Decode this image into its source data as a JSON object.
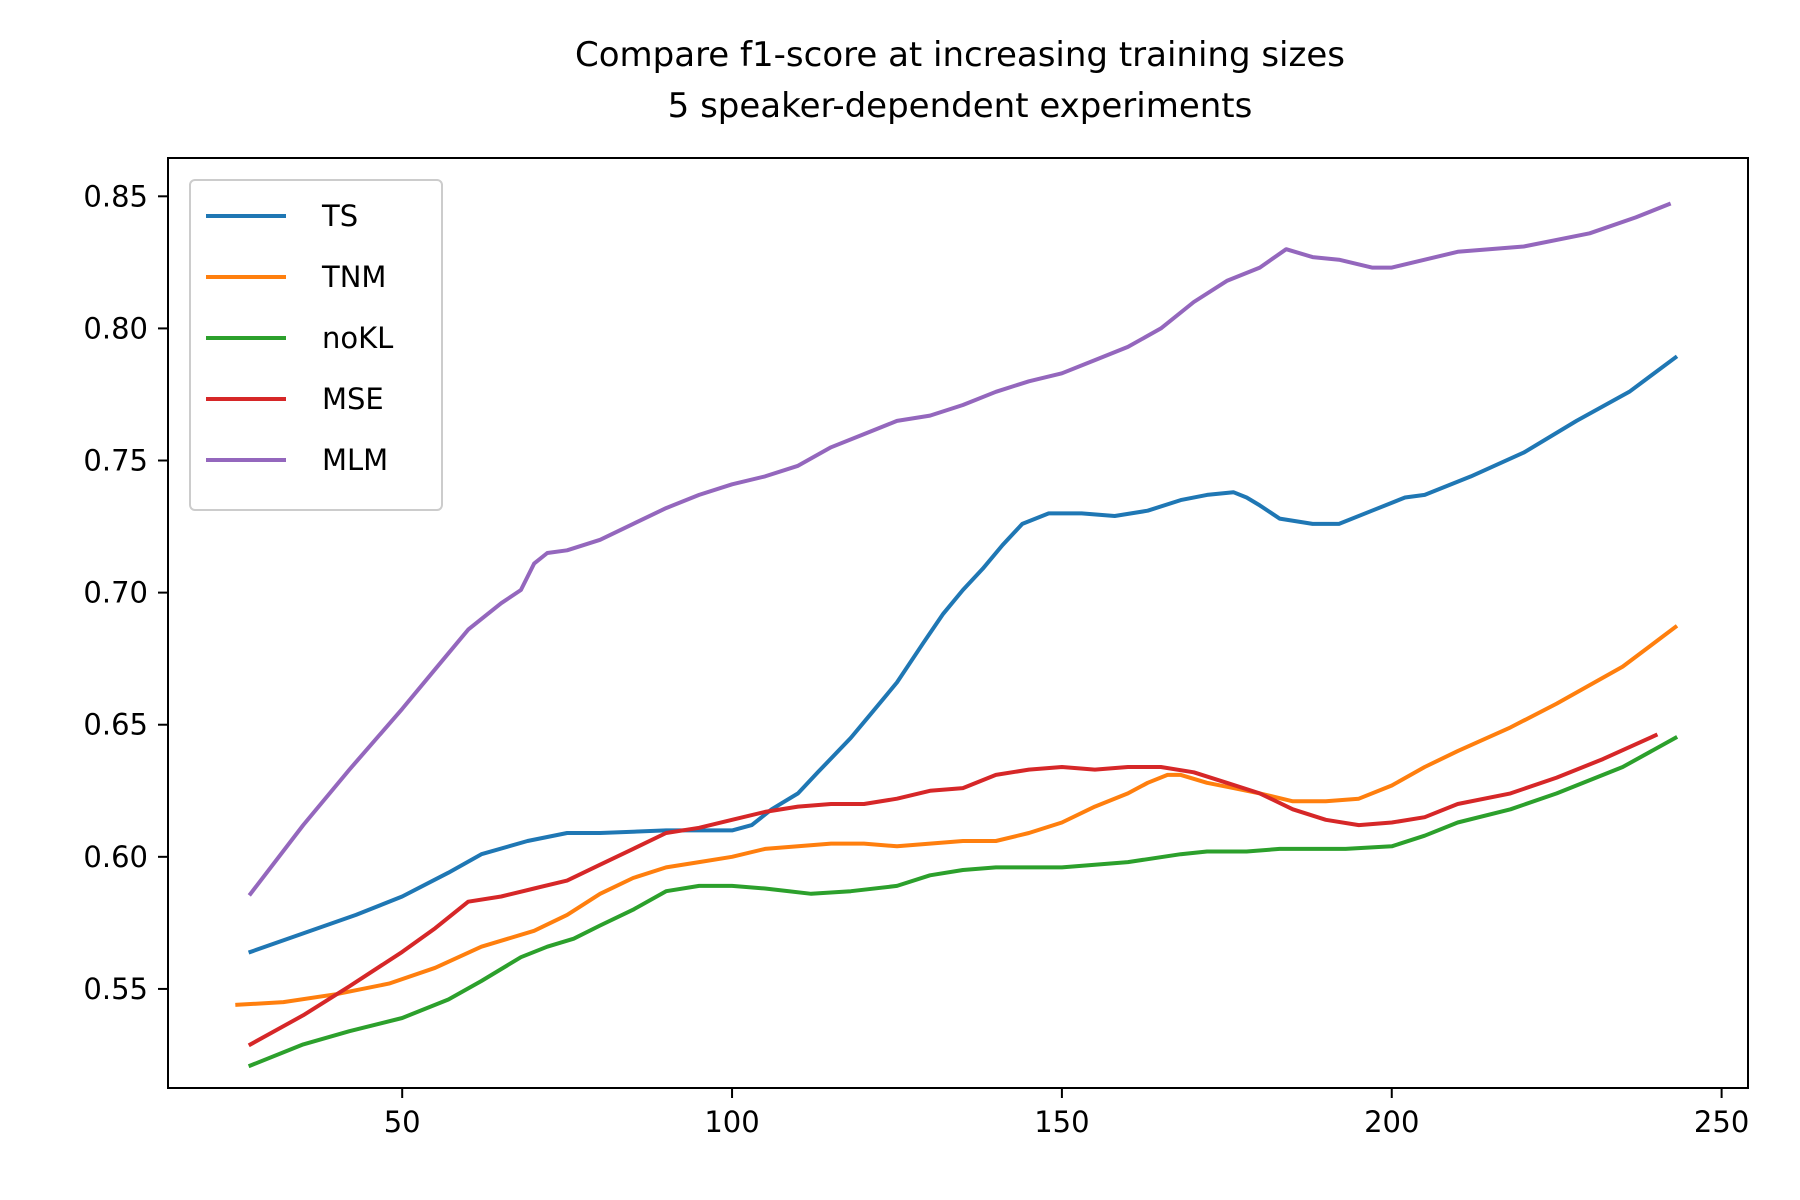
{
  "chart_data": {
    "type": "line",
    "title": "Compare f1-score at increasing training sizes",
    "subtitle": "5 speaker-dependent experiments",
    "xlabel": "",
    "ylabel": "",
    "xlim": [
      14.5,
      254
    ],
    "ylim": [
      0.5125,
      0.8645
    ],
    "x_ticks": [
      50,
      100,
      150,
      200,
      250
    ],
    "x_tick_labels": [
      "50",
      "100",
      "150",
      "200",
      "250"
    ],
    "y_ticks": [
      0.55,
      0.6,
      0.65,
      0.7,
      0.75,
      0.8,
      0.85
    ],
    "y_tick_labels": [
      "0.55",
      "0.60",
      "0.65",
      "0.70",
      "0.75",
      "0.80",
      "0.85"
    ],
    "grid": false,
    "legend_position": "top-left",
    "series": [
      {
        "name": "TS",
        "color": "#1f77b4",
        "points": [
          [
            27,
            0.564
          ],
          [
            35,
            0.571
          ],
          [
            43,
            0.578
          ],
          [
            50,
            0.585
          ],
          [
            57,
            0.594
          ],
          [
            62,
            0.601
          ],
          [
            69,
            0.606
          ],
          [
            75,
            0.609
          ],
          [
            80,
            0.609
          ],
          [
            90,
            0.61
          ],
          [
            100,
            0.61
          ],
          [
            103,
            0.612
          ],
          [
            106,
            0.618
          ],
          [
            110,
            0.624
          ],
          [
            113,
            0.632
          ],
          [
            118,
            0.645
          ],
          [
            121,
            0.654
          ],
          [
            125,
            0.666
          ],
          [
            129,
            0.681
          ],
          [
            132,
            0.692
          ],
          [
            135,
            0.701
          ],
          [
            138,
            0.709
          ],
          [
            141,
            0.718
          ],
          [
            144,
            0.726
          ],
          [
            148,
            0.73
          ],
          [
            153,
            0.73
          ],
          [
            158,
            0.729
          ],
          [
            163,
            0.731
          ],
          [
            168,
            0.735
          ],
          [
            172,
            0.737
          ],
          [
            176,
            0.738
          ],
          [
            178,
            0.736
          ],
          [
            180,
            0.733
          ],
          [
            183,
            0.728
          ],
          [
            188,
            0.726
          ],
          [
            192,
            0.726
          ],
          [
            197,
            0.731
          ],
          [
            202,
            0.736
          ],
          [
            205,
            0.737
          ],
          [
            212,
            0.744
          ],
          [
            220,
            0.753
          ],
          [
            228,
            0.765
          ],
          [
            236,
            0.776
          ],
          [
            243,
            0.789
          ]
        ]
      },
      {
        "name": "TNM",
        "color": "#ff7f0e",
        "points": [
          [
            25,
            0.544
          ],
          [
            32,
            0.545
          ],
          [
            40,
            0.548
          ],
          [
            48,
            0.552
          ],
          [
            55,
            0.558
          ],
          [
            62,
            0.566
          ],
          [
            70,
            0.572
          ],
          [
            75,
            0.578
          ],
          [
            80,
            0.586
          ],
          [
            85,
            0.592
          ],
          [
            90,
            0.596
          ],
          [
            95,
            0.598
          ],
          [
            100,
            0.6
          ],
          [
            105,
            0.603
          ],
          [
            110,
            0.604
          ],
          [
            115,
            0.605
          ],
          [
            120,
            0.605
          ],
          [
            125,
            0.604
          ],
          [
            130,
            0.605
          ],
          [
            135,
            0.606
          ],
          [
            140,
            0.606
          ],
          [
            145,
            0.609
          ],
          [
            150,
            0.613
          ],
          [
            155,
            0.619
          ],
          [
            160,
            0.624
          ],
          [
            163,
            0.628
          ],
          [
            166,
            0.631
          ],
          [
            168,
            0.631
          ],
          [
            172,
            0.628
          ],
          [
            176,
            0.626
          ],
          [
            180,
            0.624
          ],
          [
            185,
            0.621
          ],
          [
            190,
            0.621
          ],
          [
            195,
            0.622
          ],
          [
            200,
            0.627
          ],
          [
            205,
            0.634
          ],
          [
            210,
            0.64
          ],
          [
            218,
            0.649
          ],
          [
            225,
            0.658
          ],
          [
            235,
            0.672
          ],
          [
            243,
            0.687
          ]
        ]
      },
      {
        "name": "noKL",
        "color": "#2ca02c",
        "points": [
          [
            27,
            0.521
          ],
          [
            35,
            0.529
          ],
          [
            42,
            0.534
          ],
          [
            50,
            0.539
          ],
          [
            57,
            0.546
          ],
          [
            62,
            0.553
          ],
          [
            68,
            0.562
          ],
          [
            72,
            0.566
          ],
          [
            76,
            0.569
          ],
          [
            80,
            0.574
          ],
          [
            85,
            0.58
          ],
          [
            90,
            0.587
          ],
          [
            95,
            0.589
          ],
          [
            100,
            0.589
          ],
          [
            105,
            0.588
          ],
          [
            112,
            0.586
          ],
          [
            118,
            0.587
          ],
          [
            125,
            0.589
          ],
          [
            130,
            0.593
          ],
          [
            135,
            0.595
          ],
          [
            140,
            0.596
          ],
          [
            150,
            0.596
          ],
          [
            160,
            0.598
          ],
          [
            168,
            0.601
          ],
          [
            172,
            0.602
          ],
          [
            178,
            0.602
          ],
          [
            183,
            0.603
          ],
          [
            188,
            0.603
          ],
          [
            193,
            0.603
          ],
          [
            200,
            0.604
          ],
          [
            205,
            0.608
          ],
          [
            210,
            0.613
          ],
          [
            218,
            0.618
          ],
          [
            225,
            0.624
          ],
          [
            235,
            0.634
          ],
          [
            243,
            0.645
          ]
        ]
      },
      {
        "name": "MSE",
        "color": "#d62728",
        "points": [
          [
            27,
            0.529
          ],
          [
            35,
            0.54
          ],
          [
            42,
            0.551
          ],
          [
            50,
            0.564
          ],
          [
            55,
            0.573
          ],
          [
            60,
            0.583
          ],
          [
            65,
            0.585
          ],
          [
            70,
            0.588
          ],
          [
            75,
            0.591
          ],
          [
            80,
            0.597
          ],
          [
            85,
            0.603
          ],
          [
            90,
            0.609
          ],
          [
            95,
            0.611
          ],
          [
            100,
            0.614
          ],
          [
            105,
            0.617
          ],
          [
            110,
            0.619
          ],
          [
            115,
            0.62
          ],
          [
            120,
            0.62
          ],
          [
            125,
            0.622
          ],
          [
            130,
            0.625
          ],
          [
            135,
            0.626
          ],
          [
            140,
            0.631
          ],
          [
            145,
            0.633
          ],
          [
            150,
            0.634
          ],
          [
            155,
            0.633
          ],
          [
            160,
            0.634
          ],
          [
            165,
            0.634
          ],
          [
            170,
            0.632
          ],
          [
            175,
            0.628
          ],
          [
            180,
            0.624
          ],
          [
            185,
            0.618
          ],
          [
            190,
            0.614
          ],
          [
            195,
            0.612
          ],
          [
            200,
            0.613
          ],
          [
            205,
            0.615
          ],
          [
            210,
            0.62
          ],
          [
            218,
            0.624
          ],
          [
            225,
            0.63
          ],
          [
            232,
            0.637
          ],
          [
            240,
            0.646
          ]
        ]
      },
      {
        "name": "MLM",
        "color": "#9467bd",
        "points": [
          [
            27,
            0.586
          ],
          [
            35,
            0.612
          ],
          [
            42,
            0.633
          ],
          [
            50,
            0.656
          ],
          [
            55,
            0.671
          ],
          [
            60,
            0.686
          ],
          [
            65,
            0.696
          ],
          [
            68,
            0.701
          ],
          [
            70,
            0.711
          ],
          [
            72,
            0.715
          ],
          [
            75,
            0.716
          ],
          [
            80,
            0.72
          ],
          [
            85,
            0.726
          ],
          [
            90,
            0.732
          ],
          [
            95,
            0.737
          ],
          [
            100,
            0.741
          ],
          [
            105,
            0.744
          ],
          [
            110,
            0.748
          ],
          [
            115,
            0.755
          ],
          [
            120,
            0.76
          ],
          [
            125,
            0.765
          ],
          [
            130,
            0.767
          ],
          [
            135,
            0.771
          ],
          [
            140,
            0.776
          ],
          [
            145,
            0.78
          ],
          [
            150,
            0.783
          ],
          [
            155,
            0.788
          ],
          [
            160,
            0.793
          ],
          [
            165,
            0.8
          ],
          [
            170,
            0.81
          ],
          [
            175,
            0.818
          ],
          [
            180,
            0.823
          ],
          [
            184,
            0.83
          ],
          [
            188,
            0.827
          ],
          [
            192,
            0.826
          ],
          [
            197,
            0.823
          ],
          [
            200,
            0.823
          ],
          [
            205,
            0.826
          ],
          [
            210,
            0.829
          ],
          [
            220,
            0.831
          ],
          [
            230,
            0.836
          ],
          [
            237,
            0.842
          ],
          [
            242,
            0.847
          ]
        ]
      }
    ]
  }
}
